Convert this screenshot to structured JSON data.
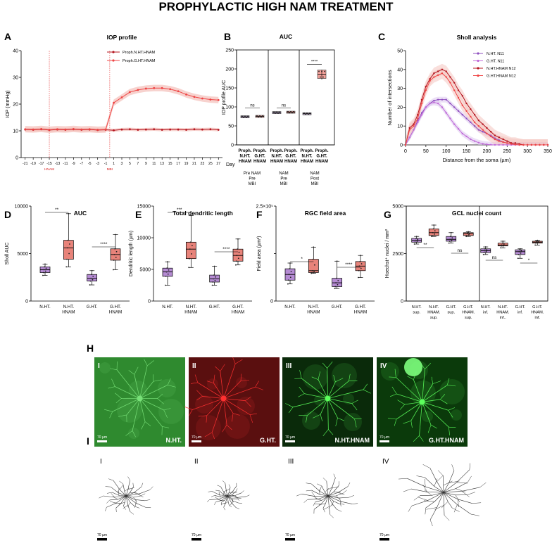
{
  "figure_title": "PROPHYLACTIC HIGH NAM TREATMENT",
  "colors": {
    "line_red": "#d92020",
    "purple": "#8f4fbf",
    "violet": "#c06ad8",
    "salmon": "#e8837a",
    "pink_fill": "#f2b4ae",
    "lav_fill": "#c8a6e0",
    "dark_red": "#b4141e",
    "green": "#27c33a",
    "red_img": "#d01010"
  },
  "chart_data": [
    {
      "panel": "A",
      "type": "line",
      "title": "IOP profile",
      "xlabel": "Day",
      "ylabel": "IOP (mmHg)",
      "ylim": [
        0,
        40
      ],
      "yticks": [
        0,
        10,
        20,
        30,
        40
      ],
      "xticks": [
        "-21",
        "-19",
        "-17",
        "-15",
        "-13",
        "-11",
        "-9",
        "-7",
        "-5",
        "-3",
        "-1",
        "1",
        "3",
        "5",
        "7",
        "9",
        "11",
        "13",
        "15",
        "17",
        "19",
        "21",
        "23",
        "25",
        "27"
      ],
      "markers": [
        {
          "label": "HNAM",
          "day": -15
        },
        {
          "label": "MBI",
          "day": 0
        }
      ],
      "series": [
        {
          "name": "Proph.N.HT.HNAM",
          "days": [
            -21,
            -19,
            -17,
            -15,
            -13,
            -11,
            -9,
            -7,
            -5,
            -3,
            -1,
            1,
            3,
            5,
            7,
            9,
            11,
            13,
            15,
            17,
            19,
            21,
            23,
            25,
            27
          ],
          "values": [
            10.5,
            10.4,
            10.6,
            10.3,
            10.5,
            10.4,
            10.6,
            10.4,
            10.5,
            10.3,
            10.4,
            10.2,
            10.5,
            10.6,
            10.4,
            10.5,
            10.6,
            10.4,
            10.5,
            10.5,
            10.4,
            10.6,
            10.5,
            10.6,
            10.4
          ]
        },
        {
          "name": "Proph.G.HT.HNAM",
          "days": [
            -21,
            -19,
            -17,
            -15,
            -13,
            -11,
            -9,
            -7,
            -5,
            -3,
            -1,
            1,
            3,
            5,
            7,
            9,
            11,
            13,
            15,
            17,
            19,
            21,
            23,
            25,
            27
          ],
          "values": [
            10.6,
            10.5,
            10.7,
            10.4,
            10.6,
            10.5,
            10.7,
            10.5,
            10.6,
            10.4,
            10.5,
            20.5,
            22.5,
            24.5,
            25.3,
            25.8,
            26.0,
            26.0,
            25.6,
            24.8,
            23.6,
            22.7,
            22.1,
            21.7,
            21.5
          ]
        }
      ]
    },
    {
      "panel": "B",
      "type": "box",
      "title": "AUC",
      "ylabel": "IOP profile AUC",
      "ylim": [
        0,
        250
      ],
      "yticks": [
        0,
        50,
        100,
        150,
        200,
        250
      ],
      "categories": [
        "Proph. N.HT. HNAM",
        "Proph. G.HT. HNAM",
        "Proph. N.HT. HNAM",
        "Proph. G.HT. HNAM",
        "Proph. N.HT. HNAM",
        "Proph. G.HT. HNAM"
      ],
      "groups": [
        "Pre NAM Pre MBI",
        "NAM Pre MBI",
        "NAM Post MBI"
      ],
      "medians": [
        74,
        75,
        85,
        86,
        82,
        186
      ],
      "significance": [
        {
          "pair": [
            1,
            2
          ],
          "label": "ns"
        },
        {
          "pair": [
            3,
            4
          ],
          "label": "ns"
        },
        {
          "pair": [
            5,
            6
          ],
          "label": "****"
        }
      ]
    },
    {
      "panel": "C",
      "type": "line",
      "title": "Sholl analysis",
      "xlabel": "Distance from the soma (µm)",
      "ylabel": "Number of intersections",
      "xlim": [
        0,
        350
      ],
      "ylim": [
        0,
        50
      ],
      "xticks": [
        0,
        50,
        100,
        150,
        200,
        250,
        300,
        350
      ],
      "yticks": [
        0,
        10,
        20,
        30,
        40,
        50
      ],
      "series": [
        {
          "name": "N.HT. N11",
          "x": [
            0,
            10,
            20,
            30,
            40,
            50,
            60,
            70,
            80,
            90,
            100,
            110,
            120,
            130,
            140,
            150,
            160,
            170,
            180,
            190,
            200,
            210,
            220,
            230,
            240,
            250,
            260,
            270,
            280,
            290,
            300,
            310,
            320,
            330,
            340,
            350
          ],
          "values": [
            0,
            4,
            8,
            13,
            17,
            20,
            22,
            23.5,
            24,
            24,
            24,
            22,
            20,
            18,
            16,
            14,
            12,
            10,
            8,
            7,
            6,
            5,
            3.5,
            2.5,
            1.5,
            1,
            0.5,
            0.2,
            0,
            0,
            0,
            0,
            0,
            0,
            0,
            0
          ]
        },
        {
          "name": "G.HT. N11",
          "x": [
            0,
            10,
            20,
            30,
            40,
            50,
            60,
            70,
            80,
            90,
            100,
            110,
            120,
            130,
            140,
            150,
            160,
            170,
            180,
            190,
            200,
            210,
            220,
            230,
            240,
            250,
            260,
            270,
            280,
            290,
            300,
            310,
            320,
            330,
            340,
            350
          ],
          "values": [
            0,
            4,
            8,
            12,
            16,
            20,
            22,
            22.5,
            22,
            20,
            17,
            14,
            11,
            8.5,
            6,
            4.5,
            3,
            2,
            1.2,
            0.6,
            0.3,
            0.1,
            0,
            0,
            0,
            0,
            0,
            0,
            0,
            0,
            0,
            0,
            0,
            0,
            0,
            0
          ]
        },
        {
          "name": "N.HT.HNAM N12",
          "x": [
            0,
            10,
            20,
            30,
            40,
            50,
            60,
            70,
            80,
            90,
            100,
            110,
            120,
            130,
            140,
            150,
            160,
            170,
            180,
            190,
            200,
            210,
            220,
            230,
            240,
            250,
            260,
            270,
            280,
            290,
            300,
            310,
            320,
            330,
            340,
            350
          ],
          "values": [
            0,
            9,
            11,
            16,
            24,
            31,
            35,
            38,
            39,
            40,
            39,
            36,
            33,
            29,
            26,
            22,
            19,
            16,
            13,
            11,
            9,
            7,
            5,
            4,
            3,
            2,
            1,
            1,
            0.5,
            0,
            0,
            0,
            0,
            0,
            0,
            0
          ]
        },
        {
          "name": "G.HT.HNAM N12",
          "x": [
            0,
            10,
            20,
            30,
            40,
            50,
            60,
            70,
            80,
            90,
            100,
            110,
            120,
            130,
            140,
            150,
            160,
            170,
            180,
            190,
            200,
            210,
            220,
            230,
            240,
            250,
            260,
            270,
            280,
            290,
            300,
            310,
            320,
            330,
            340,
            350
          ],
          "values": [
            0,
            8,
            10,
            14,
            22,
            29,
            34,
            36,
            37,
            38,
            36,
            33,
            29,
            25,
            21,
            18,
            15,
            12,
            10,
            8,
            6,
            4.5,
            3,
            2,
            1.5,
            1,
            0.5,
            0.2,
            0,
            0,
            0,
            0,
            0,
            0,
            0,
            0
          ]
        }
      ]
    },
    {
      "panel": "D",
      "type": "box",
      "title": "AUC",
      "ylabel": "Sholl AUC",
      "ylim": [
        0,
        10000
      ],
      "yticks": [
        0,
        5000,
        10000
      ],
      "categories": [
        "N.HT.",
        "N.HT. HNAM",
        "G.HT.",
        "G.HT. HNAM"
      ],
      "boxes": [
        {
          "q1": 3000,
          "median": 3300,
          "q3": 3600,
          "min": 2700,
          "max": 3900
        },
        {
          "q1": 4400,
          "median": 5600,
          "q3": 6400,
          "min": 3600,
          "max": 9200
        },
        {
          "q1": 2100,
          "median": 2400,
          "q3": 2800,
          "min": 1700,
          "max": 3200
        },
        {
          "q1": 4300,
          "median": 4900,
          "q3": 5500,
          "min": 3300,
          "max": 7000
        }
      ],
      "significance": [
        {
          "pair": [
            1,
            2
          ],
          "label": "**"
        },
        {
          "pair": [
            3,
            4
          ],
          "label": "****"
        }
      ]
    },
    {
      "panel": "E",
      "type": "box",
      "title": "Total dendritic length",
      "ylabel": "Dendritic length (µm)",
      "ylim": [
        0,
        15000
      ],
      "yticks": [
        0,
        5000,
        10000,
        15000
      ],
      "categories": [
        "N.HT.",
        "N.HT. HNAM",
        "G.HT.",
        "G.HT. HNAM"
      ],
      "boxes": [
        {
          "q1": 3900,
          "median": 4600,
          "q3": 5200,
          "min": 2500,
          "max": 6200
        },
        {
          "q1": 6700,
          "median": 8200,
          "q3": 9300,
          "min": 5300,
          "max": 13500
        },
        {
          "q1": 3000,
          "median": 3500,
          "q3": 4100,
          "min": 2500,
          "max": 5500
        },
        {
          "q1": 6300,
          "median": 7200,
          "q3": 8200,
          "min": 5700,
          "max": 9800
        }
      ],
      "significance": [
        {
          "pair": [
            1,
            2
          ],
          "label": "***"
        },
        {
          "pair": [
            3,
            4
          ],
          "label": "****"
        }
      ]
    },
    {
      "panel": "F",
      "type": "box",
      "title": "RGC field area",
      "ylabel": "Field area (µm²)",
      "ylim": [
        0,
        250000
      ],
      "yticks": [
        0,
        125000,
        250000
      ],
      "ytick_labels": [
        "0",
        "",
        "2.5×10⁵"
      ],
      "categories": [
        "N.HT.",
        "N.HT. HNAM",
        "G.HT.",
        "G.HT. HNAM"
      ],
      "boxes": [
        {
          "q1": 55000,
          "median": 70000,
          "q3": 85000,
          "min": 45000,
          "max": 100000
        },
        {
          "q1": 75000,
          "median": 80000,
          "q3": 110000,
          "min": 73000,
          "max": 142000
        },
        {
          "q1": 38000,
          "median": 48000,
          "q3": 60000,
          "min": 33000,
          "max": 105000
        },
        {
          "q1": 80000,
          "median": 92000,
          "q3": 104000,
          "min": 62000,
          "max": 120000
        }
      ],
      "significance": [
        {
          "pair": [
            1,
            2
          ],
          "label": "*"
        },
        {
          "pair": [
            3,
            4
          ],
          "label": "****"
        }
      ]
    },
    {
      "panel": "G",
      "type": "box",
      "title": "GCL nuclei count",
      "ylabel": "Hoechst⁺ nuclei / mm²",
      "ylim": [
        0,
        5000
      ],
      "yticks": [
        0,
        2500,
        5000
      ],
      "categories": [
        "N.HT. sup.",
        "N.HT. HNAM. sup.",
        "G.HT. sup.",
        "G.HT. HNAM. sup.",
        "N.HT. inf.",
        "N.HT. HNAM. inf..",
        "G.HT. inf.",
        "G.HT. HNAM. inf."
      ],
      "boxes": [
        {
          "q1": 3100,
          "median": 3200,
          "q3": 3300,
          "min": 3000,
          "max": 3400
        },
        {
          "q1": 3450,
          "median": 3600,
          "q3": 3800,
          "min": 3400,
          "max": 4000
        },
        {
          "q1": 3150,
          "median": 3250,
          "q3": 3400,
          "min": 3050,
          "max": 3600
        },
        {
          "q1": 3450,
          "median": 3550,
          "q3": 3600,
          "min": 3400,
          "max": 3650
        },
        {
          "q1": 2550,
          "median": 2650,
          "q3": 2750,
          "min": 2450,
          "max": 2850
        },
        {
          "q1": 2900,
          "median": 2950,
          "q3": 3050,
          "min": 2800,
          "max": 3150
        },
        {
          "q1": 2450,
          "median": 2600,
          "q3": 2700,
          "min": 2250,
          "max": 2750
        },
        {
          "q1": 3050,
          "median": 3100,
          "q3": 3150,
          "min": 2950,
          "max": 3200
        }
      ],
      "significance": [
        {
          "pair": [
            1,
            2
          ],
          "label": "**"
        },
        {
          "pair": [
            3,
            4
          ],
          "label": "ns"
        },
        {
          "pair": [
            5,
            6
          ],
          "label": "ns"
        },
        {
          "pair": [
            7,
            8
          ],
          "label": "*"
        }
      ]
    }
  ],
  "panel_H": {
    "letter": "H",
    "tiles": [
      {
        "roman": "I",
        "label": "N.HT."
      },
      {
        "roman": "II",
        "label": "G.HT."
      },
      {
        "roman": "III",
        "label": "N.HT.HNAM"
      },
      {
        "roman": "IV",
        "label": "G.HT.HNAM"
      }
    ],
    "scale": "70 µm"
  },
  "panel_I": {
    "letter": "I",
    "tiles": [
      {
        "roman": "I"
      },
      {
        "roman": "II"
      },
      {
        "roman": "III"
      },
      {
        "roman": "IV"
      }
    ],
    "scale": "70 µm"
  }
}
